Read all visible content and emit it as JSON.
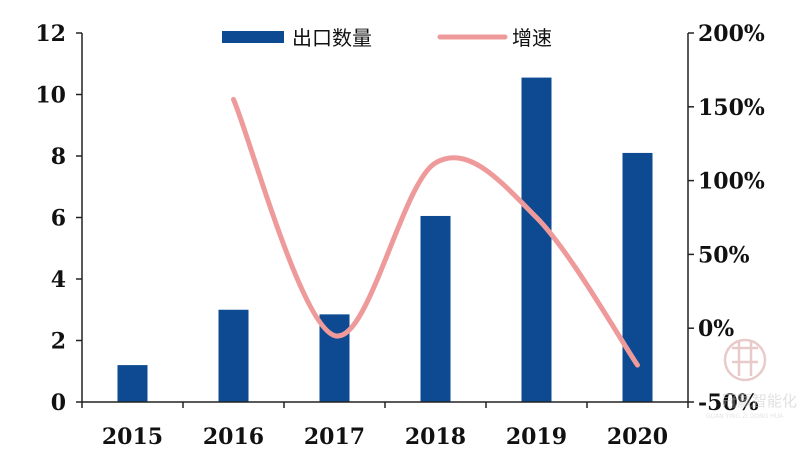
{
  "chart_data": {
    "type": "bar",
    "categories": [
      "2015",
      "2016",
      "2017",
      "2018",
      "2019",
      "2020"
    ],
    "series": [
      {
        "name": "出口数量",
        "type": "bar",
        "axis": "left",
        "color": "#0d4a91",
        "values": [
          1.2,
          3.0,
          2.85,
          6.05,
          10.55,
          8.1
        ]
      },
      {
        "name": "增速",
        "type": "line",
        "axis": "right",
        "color": "#ef9a9a",
        "unit": "%",
        "values": [
          null,
          155,
          -5,
          112,
          75,
          -25
        ]
      }
    ],
    "y_left": {
      "min": 0,
      "max": 12,
      "ticks": [
        "0",
        "2",
        "4",
        "6",
        "8",
        "10",
        "12"
      ]
    },
    "y_right": {
      "min": -50,
      "max": 200,
      "ticks": [
        "-50%",
        "0%",
        "50%",
        "100%",
        "150%",
        "200%"
      ]
    },
    "legend_position": "top-center",
    "grid": false,
    "title": "",
    "xlabel": "",
    "ylabel": ""
  },
  "watermark": {
    "text": "冠赢智能化",
    "subtext": "GUAN YING ZI DONG HUA"
  }
}
